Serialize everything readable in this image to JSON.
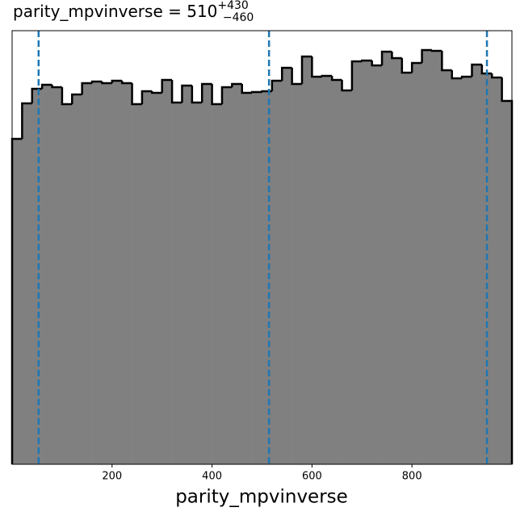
{
  "chart_data": {
    "type": "histogram",
    "title": "parity_mpvinverse = 510",
    "title_sup": "+430",
    "title_sub": "−460",
    "xlabel": "parity_mpvinverse",
    "bins": [
      0,
      20,
      40,
      60,
      80,
      100,
      120,
      140,
      160,
      180,
      200,
      220,
      240,
      260,
      280,
      300,
      320,
      340,
      360,
      380,
      400,
      420,
      440,
      460,
      480,
      500,
      520,
      540,
      560,
      580,
      600,
      620,
      640,
      660,
      680,
      700,
      720,
      740,
      760,
      780,
      800,
      820,
      840,
      860,
      880,
      900,
      920,
      940,
      960,
      980,
      1000
    ],
    "values": [
      403,
      447,
      465,
      470,
      467,
      446,
      458,
      472,
      474,
      472,
      475,
      472,
      446,
      462,
      460,
      476,
      448,
      469,
      448,
      471,
      446,
      467,
      471,
      460,
      461,
      462,
      475,
      491,
      471,
      505,
      480,
      481,
      476,
      463,
      499,
      500,
      494,
      511,
      503,
      485,
      497,
      513,
      512,
      488,
      478,
      480,
      495,
      484,
      479,
      450
    ],
    "color": "#808080",
    "edgecolor": "#000000",
    "vlines": [
      53,
      514,
      950
    ],
    "vline_color": "#1f77b4",
    "xlim": [
      0,
      1000
    ],
    "ylim": [
      0,
      537
    ],
    "xticks": [
      200,
      400,
      600,
      800
    ]
  }
}
